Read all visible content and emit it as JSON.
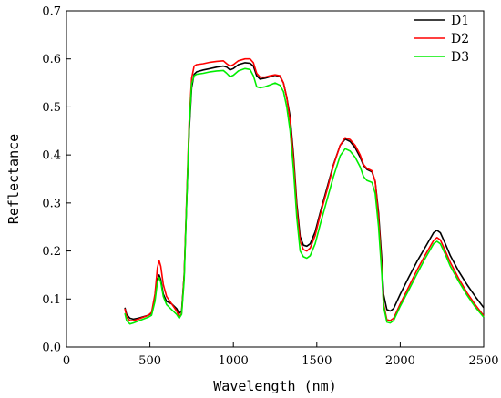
{
  "chart_data": {
    "type": "line",
    "xlabel": "Wavelength (nm)",
    "ylabel": "Reflectance",
    "xlim": [
      0,
      2500
    ],
    "ylim": [
      0,
      0.7
    ],
    "xticks": [
      "0",
      "500",
      "1000",
      "1500",
      "2000",
      "2500"
    ],
    "yticks": [
      "0.0",
      "0.1",
      "0.2",
      "0.3",
      "0.4",
      "0.5",
      "0.6",
      "0.7"
    ],
    "grid": false,
    "legend_position": "top-right",
    "series": [
      {
        "name": "D1",
        "color": "#000000",
        "points": [
          [
            350,
            0.082
          ],
          [
            360,
            0.068
          ],
          [
            380,
            0.06
          ],
          [
            400,
            0.058
          ],
          [
            430,
            0.06
          ],
          [
            460,
            0.063
          ],
          [
            490,
            0.066
          ],
          [
            510,
            0.07
          ],
          [
            530,
            0.1
          ],
          [
            545,
            0.14
          ],
          [
            555,
            0.15
          ],
          [
            565,
            0.14
          ],
          [
            580,
            0.11
          ],
          [
            600,
            0.095
          ],
          [
            630,
            0.09
          ],
          [
            660,
            0.08
          ],
          [
            675,
            0.07
          ],
          [
            690,
            0.075
          ],
          [
            705,
            0.15
          ],
          [
            720,
            0.3
          ],
          [
            735,
            0.45
          ],
          [
            750,
            0.54
          ],
          [
            765,
            0.568
          ],
          [
            780,
            0.573
          ],
          [
            820,
            0.577
          ],
          [
            860,
            0.58
          ],
          [
            900,
            0.583
          ],
          [
            940,
            0.585
          ],
          [
            960,
            0.583
          ],
          [
            980,
            0.577
          ],
          [
            1000,
            0.58
          ],
          [
            1030,
            0.588
          ],
          [
            1070,
            0.592
          ],
          [
            1100,
            0.591
          ],
          [
            1120,
            0.585
          ],
          [
            1140,
            0.565
          ],
          [
            1160,
            0.558
          ],
          [
            1190,
            0.56
          ],
          [
            1220,
            0.563
          ],
          [
            1250,
            0.566
          ],
          [
            1280,
            0.563
          ],
          [
            1300,
            0.55
          ],
          [
            1320,
            0.52
          ],
          [
            1340,
            0.48
          ],
          [
            1360,
            0.4
          ],
          [
            1380,
            0.3
          ],
          [
            1400,
            0.23
          ],
          [
            1420,
            0.212
          ],
          [
            1440,
            0.21
          ],
          [
            1460,
            0.215
          ],
          [
            1490,
            0.24
          ],
          [
            1520,
            0.28
          ],
          [
            1560,
            0.33
          ],
          [
            1600,
            0.38
          ],
          [
            1640,
            0.42
          ],
          [
            1670,
            0.433
          ],
          [
            1700,
            0.428
          ],
          [
            1730,
            0.415
          ],
          [
            1760,
            0.395
          ],
          [
            1780,
            0.378
          ],
          [
            1800,
            0.37
          ],
          [
            1830,
            0.365
          ],
          [
            1850,
            0.345
          ],
          [
            1870,
            0.28
          ],
          [
            1890,
            0.18
          ],
          [
            1900,
            0.11
          ],
          [
            1920,
            0.078
          ],
          [
            1940,
            0.075
          ],
          [
            1960,
            0.08
          ],
          [
            2000,
            0.11
          ],
          [
            2050,
            0.145
          ],
          [
            2100,
            0.178
          ],
          [
            2150,
            0.208
          ],
          [
            2200,
            0.238
          ],
          [
            2220,
            0.243
          ],
          [
            2240,
            0.238
          ],
          [
            2270,
            0.215
          ],
          [
            2300,
            0.19
          ],
          [
            2350,
            0.158
          ],
          [
            2400,
            0.13
          ],
          [
            2450,
            0.105
          ],
          [
            2500,
            0.082
          ]
        ]
      },
      {
        "name": "D2",
        "color": "#ff0000",
        "points": [
          [
            350,
            0.08
          ],
          [
            360,
            0.062
          ],
          [
            380,
            0.055
          ],
          [
            400,
            0.055
          ],
          [
            430,
            0.058
          ],
          [
            460,
            0.062
          ],
          [
            490,
            0.066
          ],
          [
            510,
            0.072
          ],
          [
            530,
            0.11
          ],
          [
            545,
            0.165
          ],
          [
            555,
            0.18
          ],
          [
            565,
            0.168
          ],
          [
            580,
            0.13
          ],
          [
            600,
            0.105
          ],
          [
            630,
            0.09
          ],
          [
            660,
            0.075
          ],
          [
            675,
            0.063
          ],
          [
            690,
            0.07
          ],
          [
            705,
            0.15
          ],
          [
            720,
            0.31
          ],
          [
            735,
            0.47
          ],
          [
            750,
            0.56
          ],
          [
            765,
            0.585
          ],
          [
            780,
            0.588
          ],
          [
            820,
            0.59
          ],
          [
            860,
            0.593
          ],
          [
            900,
            0.595
          ],
          [
            940,
            0.596
          ],
          [
            960,
            0.59
          ],
          [
            980,
            0.585
          ],
          [
            1000,
            0.588
          ],
          [
            1030,
            0.596
          ],
          [
            1070,
            0.6
          ],
          [
            1100,
            0.6
          ],
          [
            1120,
            0.592
          ],
          [
            1140,
            0.57
          ],
          [
            1160,
            0.562
          ],
          [
            1190,
            0.562
          ],
          [
            1220,
            0.565
          ],
          [
            1250,
            0.567
          ],
          [
            1280,
            0.565
          ],
          [
            1300,
            0.55
          ],
          [
            1320,
            0.52
          ],
          [
            1340,
            0.47
          ],
          [
            1360,
            0.39
          ],
          [
            1380,
            0.29
          ],
          [
            1400,
            0.22
          ],
          [
            1420,
            0.203
          ],
          [
            1440,
            0.2
          ],
          [
            1460,
            0.206
          ],
          [
            1490,
            0.232
          ],
          [
            1520,
            0.275
          ],
          [
            1560,
            0.325
          ],
          [
            1600,
            0.378
          ],
          [
            1640,
            0.42
          ],
          [
            1670,
            0.436
          ],
          [
            1700,
            0.432
          ],
          [
            1730,
            0.42
          ],
          [
            1760,
            0.4
          ],
          [
            1780,
            0.38
          ],
          [
            1800,
            0.372
          ],
          [
            1830,
            0.367
          ],
          [
            1850,
            0.345
          ],
          [
            1870,
            0.27
          ],
          [
            1890,
            0.16
          ],
          [
            1900,
            0.09
          ],
          [
            1920,
            0.057
          ],
          [
            1940,
            0.055
          ],
          [
            1960,
            0.06
          ],
          [
            2000,
            0.09
          ],
          [
            2050,
            0.125
          ],
          [
            2100,
            0.16
          ],
          [
            2150,
            0.192
          ],
          [
            2200,
            0.222
          ],
          [
            2220,
            0.228
          ],
          [
            2240,
            0.223
          ],
          [
            2270,
            0.2
          ],
          [
            2300,
            0.176
          ],
          [
            2350,
            0.143
          ],
          [
            2400,
            0.113
          ],
          [
            2450,
            0.088
          ],
          [
            2500,
            0.065
          ]
        ]
      },
      {
        "name": "D3",
        "color": "#00ee00",
        "points": [
          [
            350,
            0.07
          ],
          [
            360,
            0.055
          ],
          [
            380,
            0.048
          ],
          [
            400,
            0.05
          ],
          [
            430,
            0.054
          ],
          [
            460,
            0.058
          ],
          [
            490,
            0.062
          ],
          [
            510,
            0.066
          ],
          [
            530,
            0.095
          ],
          [
            545,
            0.135
          ],
          [
            555,
            0.145
          ],
          [
            565,
            0.135
          ],
          [
            580,
            0.105
          ],
          [
            600,
            0.088
          ],
          [
            630,
            0.078
          ],
          [
            660,
            0.068
          ],
          [
            675,
            0.06
          ],
          [
            690,
            0.068
          ],
          [
            705,
            0.14
          ],
          [
            720,
            0.3
          ],
          [
            735,
            0.46
          ],
          [
            750,
            0.548
          ],
          [
            765,
            0.565
          ],
          [
            780,
            0.568
          ],
          [
            820,
            0.57
          ],
          [
            860,
            0.573
          ],
          [
            900,
            0.575
          ],
          [
            940,
            0.576
          ],
          [
            960,
            0.57
          ],
          [
            980,
            0.563
          ],
          [
            1000,
            0.566
          ],
          [
            1030,
            0.575
          ],
          [
            1070,
            0.58
          ],
          [
            1100,
            0.578
          ],
          [
            1120,
            0.565
          ],
          [
            1140,
            0.542
          ],
          [
            1160,
            0.54
          ],
          [
            1190,
            0.542
          ],
          [
            1220,
            0.546
          ],
          [
            1250,
            0.55
          ],
          [
            1280,
            0.545
          ],
          [
            1300,
            0.532
          ],
          [
            1320,
            0.5
          ],
          [
            1340,
            0.45
          ],
          [
            1360,
            0.37
          ],
          [
            1380,
            0.27
          ],
          [
            1400,
            0.2
          ],
          [
            1420,
            0.188
          ],
          [
            1440,
            0.185
          ],
          [
            1460,
            0.19
          ],
          [
            1490,
            0.215
          ],
          [
            1520,
            0.255
          ],
          [
            1560,
            0.305
          ],
          [
            1600,
            0.355
          ],
          [
            1640,
            0.398
          ],
          [
            1670,
            0.413
          ],
          [
            1700,
            0.408
          ],
          [
            1730,
            0.395
          ],
          [
            1760,
            0.375
          ],
          [
            1780,
            0.355
          ],
          [
            1800,
            0.347
          ],
          [
            1830,
            0.343
          ],
          [
            1850,
            0.32
          ],
          [
            1870,
            0.25
          ],
          [
            1890,
            0.15
          ],
          [
            1900,
            0.085
          ],
          [
            1920,
            0.052
          ],
          [
            1940,
            0.05
          ],
          [
            1960,
            0.055
          ],
          [
            2000,
            0.085
          ],
          [
            2050,
            0.118
          ],
          [
            2100,
            0.152
          ],
          [
            2150,
            0.185
          ],
          [
            2200,
            0.215
          ],
          [
            2220,
            0.22
          ],
          [
            2240,
            0.215
          ],
          [
            2270,
            0.193
          ],
          [
            2300,
            0.168
          ],
          [
            2350,
            0.137
          ],
          [
            2400,
            0.108
          ],
          [
            2450,
            0.083
          ],
          [
            2500,
            0.062
          ]
        ]
      }
    ]
  }
}
